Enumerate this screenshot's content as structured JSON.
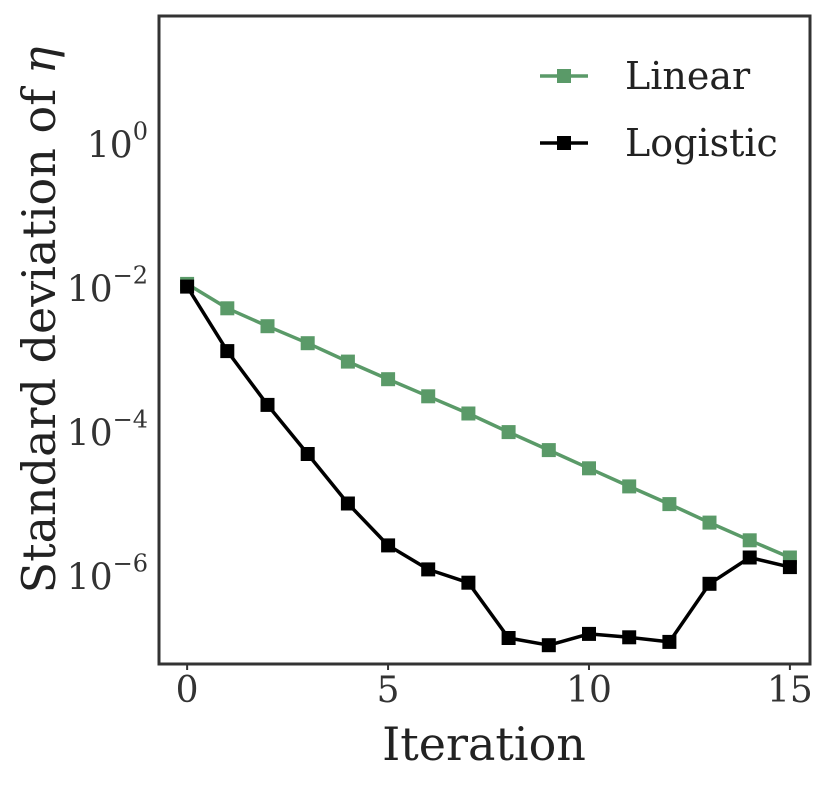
{
  "chart_data": {
    "type": "line",
    "xlabel": "Iteration",
    "ylabel_prefix": "Standard deviation of",
    "ylabel_symbol": "η",
    "xlim": [
      -0.7,
      15.5
    ],
    "ylim_log10": [
      -7.2,
      1.8
    ],
    "y_scale": "log",
    "grid": false,
    "legend_position": "top-right",
    "x_ticks": [
      0,
      5,
      10,
      15
    ],
    "y_ticks": [
      {
        "base": "10",
        "exp": "0",
        "log10": 0
      },
      {
        "base": "10",
        "exp": "−2",
        "log10": -2
      },
      {
        "base": "10",
        "exp": "−4",
        "log10": -4
      },
      {
        "base": "10",
        "exp": "−6",
        "log10": -6
      }
    ],
    "x": [
      0,
      1,
      2,
      3,
      4,
      5,
      6,
      7,
      8,
      9,
      10,
      11,
      12,
      13,
      14,
      15
    ],
    "series": [
      {
        "name": "Linear",
        "color": "#5a9a68",
        "marker": "square",
        "values": [
          0.012,
          0.0055,
          0.0031,
          0.0018,
          0.001,
          0.00057,
          0.00033,
          0.00019,
          0.000105,
          5.9e-05,
          3.3e-05,
          1.85e-05,
          1.05e-05,
          5.8e-06,
          3.3e-06,
          1.9e-06
        ]
      },
      {
        "name": "Logistic",
        "color": "#000000",
        "marker": "square",
        "values": [
          0.011,
          0.0014,
          0.00025,
          5.2e-05,
          1.07e-05,
          2.8e-06,
          1.3e-06,
          8.5e-07,
          1.45e-07,
          1.15e-07,
          1.65e-07,
          1.48e-07,
          1.28e-07,
          8.2e-07,
          1.9e-06,
          1.4e-06
        ]
      }
    ]
  }
}
